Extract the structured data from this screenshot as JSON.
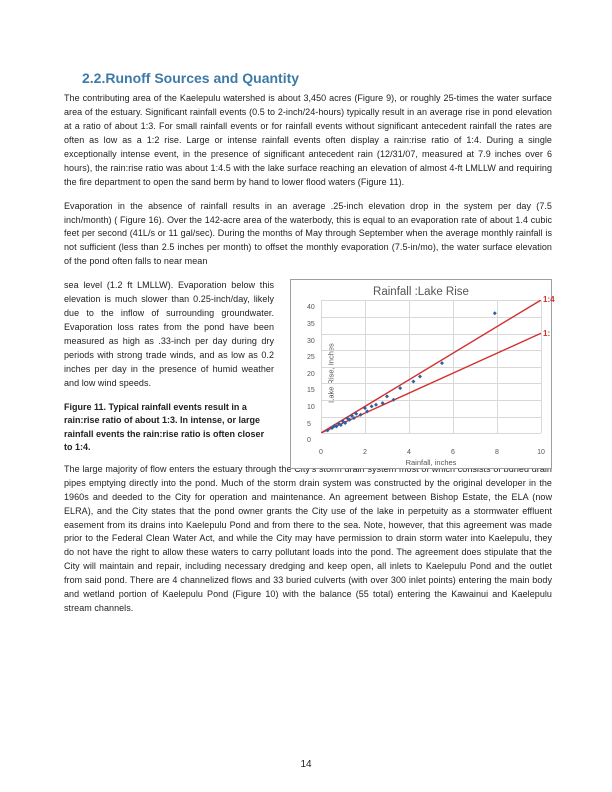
{
  "heading": "2.2.Runoff Sources and Quantity",
  "para1": "The contributing area of the Kaelepulu watershed is about 3,450 acres (Figure 9), or roughly 25-times the water surface area of the estuary. Significant rainfall events (0.5 to 2-inch/24-hours) typically result in an average rise in pond elevation at a ratio of about 1:3. For small rainfall events or for rainfall events without significant antecedent rainfall the rates are often as low as a 1:2 rise. Large or intense rainfall events often display a rain:rise ratio of 1:4. During a single exceptionally intense event, in the presence of significant antecedent rain (12/31/07, measured at 7.9 inches over 6 hours), the rain:rise ratio was about 1:4.5 with the lake surface reaching an elevation of almost 4-ft LMLLW and requiring the fire department to open the sand berm by hand to lower flood waters (Figure 11).",
  "para2a": "Evaporation in the absence of rainfall results in an average .25-inch elevation drop in the system per day (7.5 inch/month) ( Figure 16). Over the 142-acre area of the waterbody, this is equal to an evaporation rate of about 1.4 cubic feet per second (41L/s or 11 gal/sec).  During the months of May through September when the average monthly rainfall is not sufficient (less than 2.5 inches per month) to offset the monthly evaporation (7.5-in/mo), the water surface elevation of the pond often falls to near mean",
  "para2b": "sea level (1.2 ft LMLLW). Evaporation below this elevation is much slower than 0.25-inch/day, likely due to the inflow of surrounding groundwater.  Evaporation loss rates from the pond have been measured as high as .33-inch per day during dry periods with strong trade winds, and as low as 0.2 inches per day in the presence of humid weather and low wind speeds.",
  "caption": "Figure 11.  Typical rainfall events result in a rain:rise ratio of about 1:3.  In intense, or large rainfall events the rain:rise ratio is often closer to 1:4.",
  "para3": "The large majority of flow enters the estuary through the City's storm drain system most of which consists of buried drain pipes emptying directly into the pond. Much of the storm drain system was constructed by the original developer in the 1960s and deeded to the City for operation and maintenance. An agreement between Bishop Estate, the ELA (now ELRA), and the City states that the pond owner grants the City use of the lake in perpetuity as a stormwater effluent easement from its drains into Kaelepulu Pond and from there to the sea. Note, however, that this agreement was made prior to the Federal Clean Water Act, and while the City may have permission to drain storm water into Kaelepulu, they do not have the right to allow these waters to carry pollutant loads into the pond. The agreement does stipulate that the City will maintain and repair, including necessary dredging and keep open, all inlets to Kaelepulu Pond and the outlet from said pond. There are 4 channelized flows and 33 buried culverts (with over 300 inlet points) entering the main body and wetland portion of Kaelepulu Pond (Figure 10) with the balance (55 total) entering the Kawainui and Kaelepulu stream channels.",
  "page_number": "14",
  "chart": {
    "title": "Rainfall :Lake Rise",
    "xlabel": "Rainfall, inches",
    "ylabel": "Lake Rise, Inches",
    "xlim": [
      0,
      10
    ],
    "ylim": [
      0,
      40
    ],
    "xtick_step": 2,
    "ytick_step": 5,
    "grid_color": "#d8d8d8",
    "border_color": "#9aa0a6",
    "lines": [
      {
        "slope": 4,
        "intercept": 0,
        "color": "#d32f2f",
        "label": "1:4",
        "label_at_x": 10
      },
      {
        "slope": 3,
        "intercept": 0,
        "color": "#d32f2f",
        "label": "1:",
        "label_at_x": 10
      }
    ],
    "scatter": {
      "color": "#2e5fa3",
      "marker_size": 4,
      "points": [
        [
          0.3,
          0.8
        ],
        [
          0.5,
          1.5
        ],
        [
          0.6,
          2.1
        ],
        [
          0.7,
          2.0
        ],
        [
          0.8,
          2.8
        ],
        [
          0.9,
          2.4
        ],
        [
          1.0,
          3.5
        ],
        [
          1.1,
          3.0
        ],
        [
          1.2,
          4.4
        ],
        [
          1.3,
          4.0
        ],
        [
          1.4,
          5.2
        ],
        [
          1.5,
          4.5
        ],
        [
          1.6,
          5.8
        ],
        [
          1.8,
          5.5
        ],
        [
          2.0,
          7.5
        ],
        [
          2.1,
          6.5
        ],
        [
          2.3,
          8.0
        ],
        [
          2.5,
          8.5
        ],
        [
          2.8,
          9.0
        ],
        [
          3.0,
          11.0
        ],
        [
          3.3,
          10.0
        ],
        [
          3.6,
          13.5
        ],
        [
          4.2,
          15.5
        ],
        [
          4.5,
          17.0
        ],
        [
          5.5,
          21.0
        ],
        [
          7.9,
          36.0
        ]
      ]
    }
  }
}
